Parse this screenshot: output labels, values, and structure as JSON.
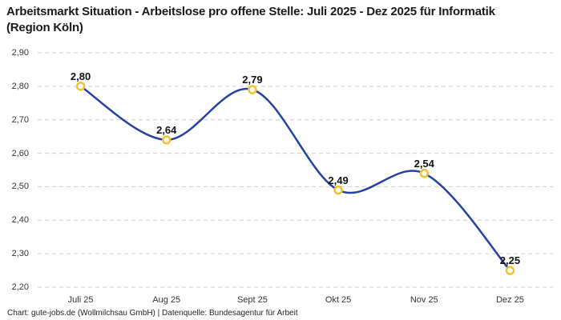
{
  "header": {
    "title": "Arbeitsmarkt Situation - Arbeitslose pro offene Stelle: Juli 2025 - Dez 2025 für Informatik (Region Köln)"
  },
  "chart_data": {
    "type": "line",
    "line_style": "spline",
    "categories": [
      "Juli 25",
      "Aug 25",
      "Sept 25",
      "Okt 25",
      "Nov 25",
      "Dez 25"
    ],
    "values": [
      2.8,
      2.64,
      2.79,
      2.49,
      2.54,
      2.25
    ],
    "value_labels": [
      "2,80",
      "2,64",
      "2,79",
      "2,49",
      "2,54",
      "2,25"
    ],
    "y_ticks": [
      {
        "value": 2.9,
        "label": "2,90"
      },
      {
        "value": 2.8,
        "label": "2,80"
      },
      {
        "value": 2.7,
        "label": "2,70"
      },
      {
        "value": 2.6,
        "label": "2,60"
      },
      {
        "value": 2.5,
        "label": "2,50"
      },
      {
        "value": 2.4,
        "label": "2,40"
      },
      {
        "value": 2.3,
        "label": "2,30"
      },
      {
        "value": 2.2,
        "label": "2,20"
      }
    ],
    "ylim": [
      2.2,
      2.9
    ],
    "xlabel": "",
    "ylabel": "",
    "grid": "horizontal-dashed",
    "legend": "none",
    "colors": {
      "line": "#2641A3",
      "marker_stroke": "#F4C030",
      "marker_fill": "#FFFFFF",
      "grid": "#CCCCCC"
    }
  },
  "footer": {
    "credit": "Chart: gute-jobs.de (Wollmilchsau GmbH) | Datenquelle: Bundesagentur für Arbeit"
  }
}
